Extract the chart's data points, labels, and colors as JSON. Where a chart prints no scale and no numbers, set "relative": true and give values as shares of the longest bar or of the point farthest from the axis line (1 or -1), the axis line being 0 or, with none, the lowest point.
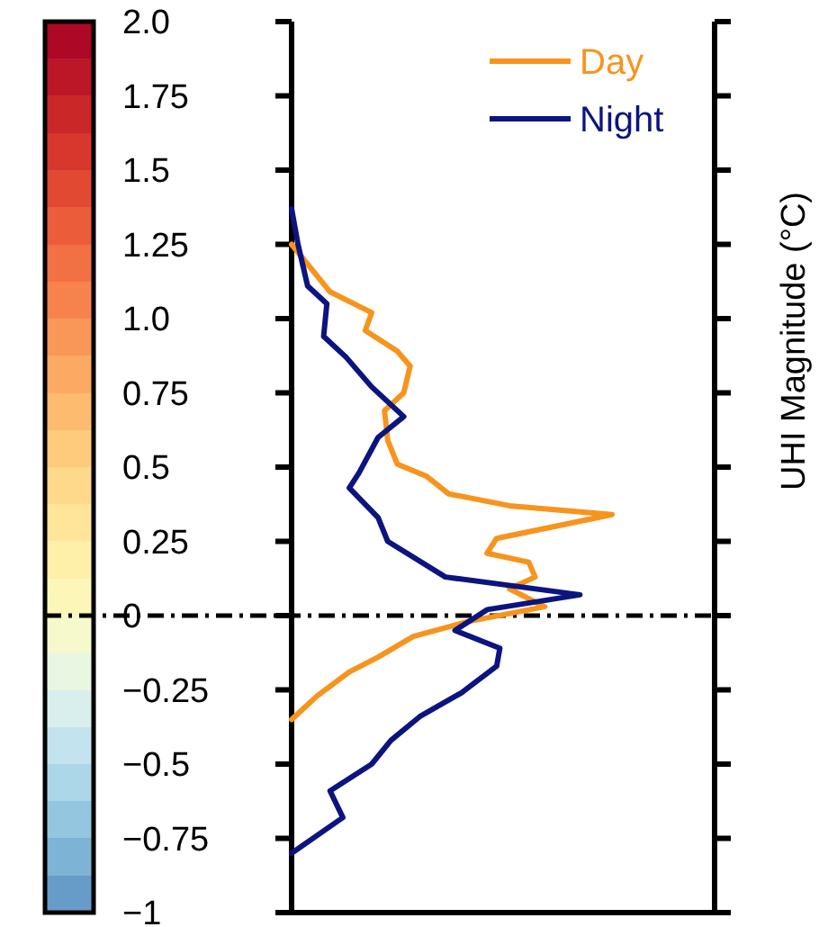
{
  "chart_data": {
    "type": "line",
    "orientation": "horizontal",
    "relative": true,
    "ylabel": "UHI Magnitude (°C)",
    "legend": "top right",
    "tick_labels": "y",
    "ylim": [
      -1,
      2
    ],
    "yticks": [
      {
        "value": 2,
        "label": "2.0"
      },
      1.75,
      1.5,
      1.25,
      {
        "value": 1,
        "label": "1.0"
      },
      0.75,
      0.5,
      0.25,
      0,
      {
        "value": -0.25,
        "label": "−0.25"
      },
      {
        "value": -0.5,
        "label": "−0.5"
      },
      {
        "value": -0.75,
        "label": "−0.75"
      },
      {
        "value": -1,
        "label": "−1"
      }
    ],
    "ref_lines": [
      {
        "axis": "y",
        "value": 0,
        "line_style": "dashed",
        "color": "#000000"
      }
    ],
    "series": [
      {
        "name": "Day",
        "color": "#f7941d",
        "x": [
          1.25,
          1.09,
          1.02,
          0.96,
          0.89,
          0.84,
          0.75,
          0.69,
          0.59,
          0.51,
          0.47,
          0.41,
          0.37,
          0.34,
          0.26,
          0.21,
          0.18,
          0.13,
          0.09,
          0.03,
          -0.02,
          -0.07,
          -0.14,
          -0.19,
          -0.27,
          -0.35
        ],
        "values": [
          0,
          0.12,
          0.25,
          0.23,
          0.33,
          0.37,
          0.35,
          0.29,
          0.3,
          0.33,
          0.42,
          0.49,
          0.68,
          1,
          0.64,
          0.61,
          0.74,
          0.76,
          0.68,
          0.79,
          0.55,
          0.38,
          0.27,
          0.18,
          0.08,
          0
        ]
      },
      {
        "name": "Night",
        "color": "#0c1480",
        "x": [
          1.37,
          1.25,
          1.11,
          1.05,
          0.94,
          0.87,
          0.77,
          0.67,
          0.6,
          0.48,
          0.43,
          0.33,
          0.25,
          0.13,
          0.07,
          0.02,
          -0.05,
          -0.11,
          -0.17,
          -0.26,
          -0.34,
          -0.42,
          -0.5,
          -0.59,
          -0.68,
          -0.8
        ],
        "values": [
          0,
          0.02,
          0.05,
          0.11,
          0.1,
          0.17,
          0.25,
          0.35,
          0.27,
          0.21,
          0.18,
          0.27,
          0.3,
          0.48,
          0.9,
          0.61,
          0.51,
          0.65,
          0.64,
          0.53,
          0.4,
          0.31,
          0.25,
          0.12,
          0.16,
          0
        ]
      }
    ]
  }
}
